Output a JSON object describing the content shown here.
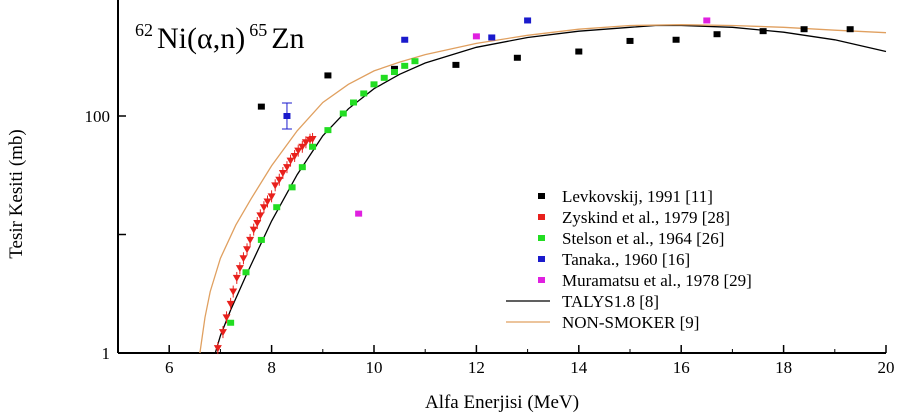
{
  "chart_data": {
    "type": "scatter",
    "title": {
      "mass_target": "62",
      "reaction": "Ni(α,n)",
      "mass_product": "65",
      "product": "Zn"
    },
    "xlabel": "Alfa Enerjisi (MeV)",
    "ylabel": "Tesir Kesiti (mb)",
    "x_scale": "linear",
    "y_scale": "log",
    "xlim": [
      5.0,
      20.0
    ],
    "ylim": [
      1,
      1000
    ],
    "x_ticks": [
      "6",
      "8",
      "10",
      "12",
      "14",
      "16",
      "18",
      "20"
    ],
    "y_ticks": [
      "1",
      "100"
    ],
    "legend_position": "right",
    "grid": false,
    "series": [
      {
        "name": "Levkovskij, 1991 [11]",
        "color": "#000000",
        "marker": "square",
        "points": [
          [
            7.8,
            120
          ],
          [
            9.1,
            220
          ],
          [
            10.4,
            250
          ],
          [
            11.6,
            270
          ],
          [
            12.8,
            310
          ],
          [
            14.0,
            350
          ],
          [
            15.0,
            430
          ],
          [
            15.9,
            440
          ],
          [
            16.7,
            490
          ],
          [
            17.6,
            520
          ],
          [
            18.4,
            540
          ],
          [
            19.3,
            540
          ]
        ]
      },
      {
        "name": "Zyskind et al., 1979 [28]",
        "color": "#e8201c",
        "marker": "triangle-down",
        "points": [
          [
            6.95,
            1.1
          ],
          [
            7.05,
            1.5
          ],
          [
            7.12,
            2.0
          ],
          [
            7.2,
            2.6
          ],
          [
            7.25,
            3.3
          ],
          [
            7.32,
            4.3
          ],
          [
            7.38,
            5.2
          ],
          [
            7.45,
            6.3
          ],
          [
            7.52,
            7.5
          ],
          [
            7.58,
            9.0
          ],
          [
            7.65,
            11
          ],
          [
            7.72,
            12.5
          ],
          [
            7.78,
            14.5
          ],
          [
            7.85,
            17
          ],
          [
            7.92,
            19
          ],
          [
            8.0,
            21
          ],
          [
            8.07,
            26
          ],
          [
            8.15,
            29
          ],
          [
            8.22,
            33
          ],
          [
            8.3,
            37
          ],
          [
            8.37,
            42
          ],
          [
            8.45,
            46
          ],
          [
            8.52,
            51
          ],
          [
            8.6,
            55
          ],
          [
            8.67,
            60
          ],
          [
            8.75,
            63
          ],
          [
            8.8,
            64
          ]
        ]
      },
      {
        "name": "Stelson et al., 1964 [26]",
        "color": "#22dd22",
        "marker": "square",
        "points": [
          [
            7.2,
            1.8
          ],
          [
            7.5,
            4.8
          ],
          [
            7.8,
            9.0
          ],
          [
            8.1,
            17
          ],
          [
            8.4,
            25
          ],
          [
            8.6,
            37
          ],
          [
            8.8,
            55
          ],
          [
            9.1,
            76
          ],
          [
            9.4,
            105
          ],
          [
            9.6,
            130
          ],
          [
            9.8,
            155
          ],
          [
            10.0,
            185
          ],
          [
            10.2,
            210
          ],
          [
            10.4,
            235
          ],
          [
            10.6,
            265
          ],
          [
            10.8,
            290
          ]
        ]
      },
      {
        "name": "Tanaka., 1960 [16]",
        "color": "#1a1acc",
        "marker": "square",
        "error_bars": true,
        "points": [
          [
            8.3,
            100
          ],
          [
            10.6,
            440
          ],
          [
            12.3,
            460
          ],
          [
            13.0,
            640
          ]
        ]
      },
      {
        "name": "Muramatsu et al., 1978 [29]",
        "color": "#e020e0",
        "marker": "square",
        "points": [
          [
            9.7,
            15
          ],
          [
            12.0,
            470
          ],
          [
            16.5,
            640
          ]
        ]
      },
      {
        "name": "TALYS1.8 [8]",
        "color": "#000000",
        "line": "solid",
        "points": [
          [
            6.9,
            1.0
          ],
          [
            7.0,
            1.4
          ],
          [
            7.2,
            2.3
          ],
          [
            7.5,
            4.5
          ],
          [
            8.0,
            13
          ],
          [
            8.5,
            32
          ],
          [
            9.0,
            68
          ],
          [
            9.5,
            115
          ],
          [
            10.0,
            170
          ],
          [
            10.5,
            225
          ],
          [
            11.0,
            280
          ],
          [
            12.0,
            380
          ],
          [
            13.0,
            460
          ],
          [
            14.0,
            520
          ],
          [
            15.0,
            560
          ],
          [
            15.5,
            580
          ],
          [
            16.0,
            580
          ],
          [
            17.0,
            560
          ],
          [
            18.0,
            510
          ],
          [
            19.0,
            440
          ],
          [
            20.0,
            350
          ]
        ]
      },
      {
        "name": "NON-SMOKER [9]",
        "color": "#e0a060",
        "line": "solid",
        "points": [
          [
            6.6,
            1.0
          ],
          [
            6.7,
            2.0
          ],
          [
            6.8,
            3.3
          ],
          [
            7.0,
            6.3
          ],
          [
            7.3,
            12
          ],
          [
            7.6,
            20
          ],
          [
            8.0,
            38
          ],
          [
            8.5,
            75
          ],
          [
            9.0,
            130
          ],
          [
            9.5,
            185
          ],
          [
            10.0,
            240
          ],
          [
            10.5,
            285
          ],
          [
            11.0,
            330
          ],
          [
            12.0,
            410
          ],
          [
            13.0,
            480
          ],
          [
            14.0,
            540
          ],
          [
            15.0,
            580
          ],
          [
            16.0,
            590
          ],
          [
            17.0,
            580
          ],
          [
            18.0,
            560
          ],
          [
            19.0,
            530
          ],
          [
            20.0,
            505
          ]
        ]
      }
    ]
  }
}
